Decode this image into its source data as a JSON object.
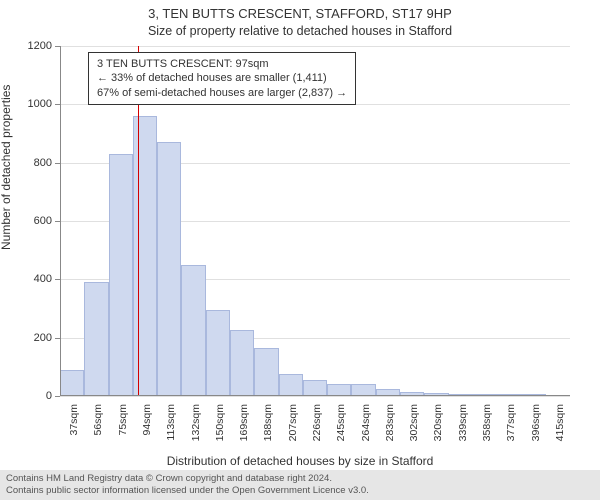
{
  "title": "3, TEN BUTTS CRESCENT, STAFFORD, ST17 9HP",
  "subtitle": "Size of property relative to detached houses in Stafford",
  "ylabel": "Number of detached properties",
  "xlabel": "Distribution of detached houses by size in Stafford",
  "footer_line1": "Contains HM Land Registry data © Crown copyright and database right 2024.",
  "footer_line2": "Contains public sector information licensed under the Open Government Licence v3.0.",
  "chart": {
    "type": "histogram",
    "ylim": [
      0,
      1200
    ],
    "yticks": [
      0,
      200,
      400,
      600,
      800,
      1000,
      1200
    ],
    "xtick_labels": [
      "37sqm",
      "56sqm",
      "75sqm",
      "94sqm",
      "113sqm",
      "132sqm",
      "150sqm",
      "169sqm",
      "188sqm",
      "207sqm",
      "226sqm",
      "245sqm",
      "264sqm",
      "283sqm",
      "302sqm",
      "320sqm",
      "339sqm",
      "358sqm",
      "377sqm",
      "396sqm",
      "415sqm"
    ],
    "values": [
      90,
      390,
      830,
      960,
      870,
      450,
      295,
      225,
      165,
      75,
      55,
      40,
      40,
      25,
      15,
      10,
      8,
      8,
      8,
      8,
      5
    ],
    "bar_fill": "#cfd9ef",
    "bar_stroke": "#a9b8dd",
    "bar_width_ratio": 1.0,
    "grid_color": "#e0e0e0",
    "axis_color": "#888888",
    "background_color": "#ffffff",
    "label_fontsize": 11,
    "tick_fontsize": 10.5,
    "marker": {
      "index": 3.2,
      "color": "#d40000"
    },
    "annotation": {
      "lines": [
        "3 TEN BUTTS CRESCENT: 97sqm",
        "← 33% of detached houses are smaller (1,411)",
        "67% of semi-detached houses are larger (2,837) →"
      ],
      "border_color": "#333333",
      "background": "#ffffff"
    }
  }
}
